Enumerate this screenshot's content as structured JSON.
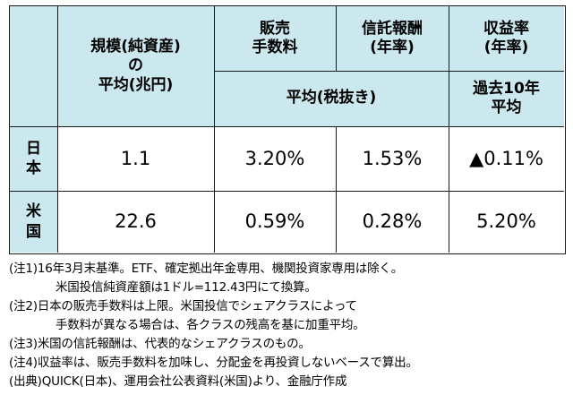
{
  "header": {
    "scale_line1": "規模(純資産)",
    "scale_line2": "の",
    "scale_line3": "平均(兆円)",
    "sales_fee_line1": "販売",
    "sales_fee_line2": "手数料",
    "trust_fee_line1": "信託報酬",
    "trust_fee_line2": "(年率)",
    "return_line1": "収益率",
    "return_line2": "(年率)",
    "avg_excl_tax": "平均(税抜き)",
    "past10_line1": "過去10年",
    "past10_line2": "平均"
  },
  "rows": [
    {
      "label_chars": [
        "日",
        "本"
      ],
      "scale": "1.1",
      "sales_fee": "3.20%",
      "trust_fee": "1.53%",
      "return": "▲0.11%"
    },
    {
      "label_chars": [
        "米",
        "国"
      ],
      "scale": "22.6",
      "sales_fee": "0.59%",
      "trust_fee": "0.28%",
      "return": "5.20%"
    }
  ],
  "notes": [
    "(注1)16年3月末基準。ETF、確定拠出年金専用、機関投資家専用は除く。",
    "米国投信純資産額は1ドル=112.43円にて換算。",
    "(注2)日本の販売手数料は上限。米国投信でシェアクラスによって",
    "手数料が異なる場合は、各クラスの残高を基に加重平均。",
    "(注3)米国の信託報酬は、代表的なシェアクラスのもの。",
    "(注4)収益率は、販売手数料を加味し、分配金を再投資しないベースで算出。",
    "(出典)QUICK(日本)、運用会社公表資料(米国)より、金融庁作成"
  ],
  "colors": {
    "header_bg": "#cbe8ee",
    "border": "#1a1a1a"
  }
}
